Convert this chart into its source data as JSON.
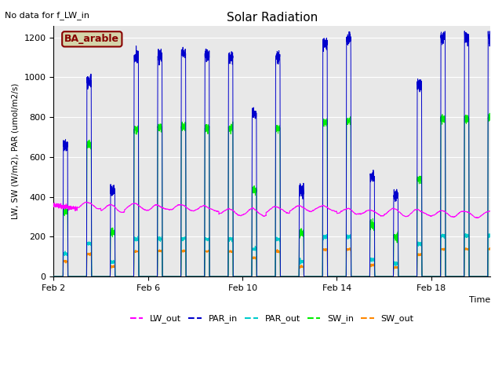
{
  "title": "Solar Radiation",
  "subtitle": "No data for f_LW_in",
  "xlabel": "Time",
  "ylabel": "LW, SW (W/m2), PAR (umol/m2/s)",
  "legend_labels": [
    "LW_out",
    "PAR_in",
    "PAR_out",
    "SW_in",
    "SW_out"
  ],
  "legend_colors": [
    "#ff00ff",
    "#0000cc",
    "#00ee00",
    "#00cccc",
    "#ff8800"
  ],
  "annotation_text": "BA_arable",
  "annotation_bg": "#d4d4aa",
  "annotation_border": "#880000",
  "xticklabels": [
    "Feb 2",
    "Feb 6",
    "Feb 10",
    "Feb 14",
    "Feb 18"
  ],
  "yticks": [
    0,
    200,
    400,
    600,
    800,
    1000,
    1200
  ],
  "ylim": [
    0,
    1260
  ],
  "bg_color": "#e8e8e8",
  "fig_bg": "#ffffff",
  "grid_color": "#ffffff",
  "n_days": 19,
  "pts_per_day": 288
}
